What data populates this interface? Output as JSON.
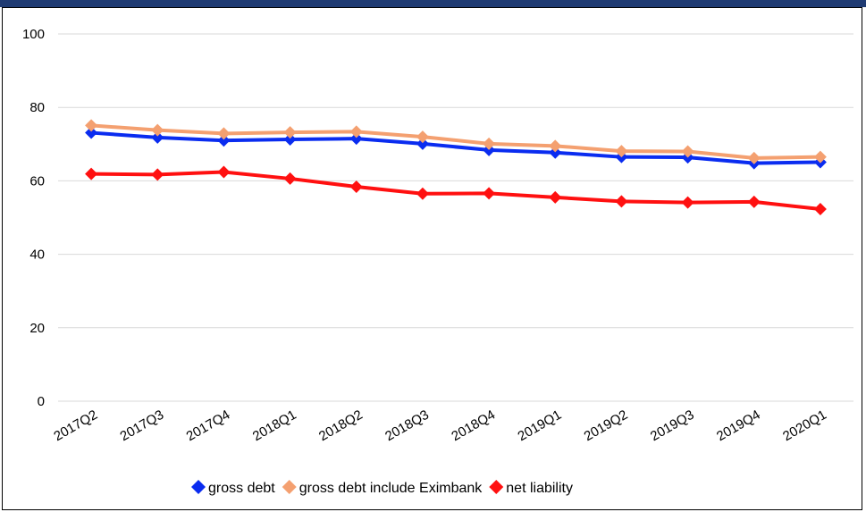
{
  "chart_data": {
    "type": "line",
    "categories": [
      "2017Q2",
      "2017Q3",
      "2017Q4",
      "2018Q1",
      "2018Q2",
      "2018Q3",
      "2018Q4",
      "2019Q1",
      "2019Q2",
      "2019Q3",
      "2019Q4",
      "2020Q1"
    ],
    "ylim": [
      0,
      100
    ],
    "yticks": [
      "0",
      "20",
      "40",
      "60",
      "80",
      "100"
    ],
    "grid": true,
    "legend_position": "bottom",
    "series": [
      {
        "name": "gross debt",
        "color": "#0a2cf0",
        "values": [
          73.1,
          71.8,
          71.0,
          71.3,
          71.5,
          70.1,
          68.4,
          67.7,
          66.5,
          66.4,
          64.8,
          65.1
        ]
      },
      {
        "name": "gross debt include Eximbank",
        "color": "#f4a070",
        "values": [
          75.1,
          73.8,
          72.9,
          73.2,
          73.4,
          72.0,
          70.1,
          69.5,
          68.1,
          68.0,
          66.2,
          66.5
        ]
      },
      {
        "name": "net liability",
        "color": "#ff1010",
        "values": [
          61.9,
          61.7,
          62.4,
          60.6,
          58.4,
          56.5,
          56.6,
          55.5,
          54.4,
          54.1,
          54.3,
          52.3
        ]
      }
    ]
  }
}
